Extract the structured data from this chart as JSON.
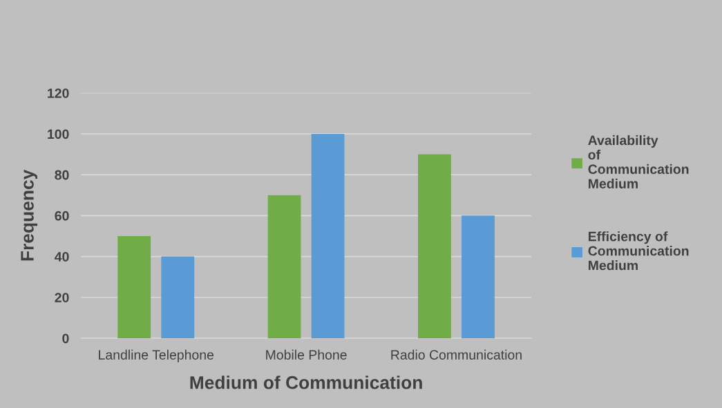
{
  "chart_data": {
    "type": "bar",
    "xlabel": "Medium of Communication",
    "ylabel": "Frequency",
    "categories": [
      "Landline Telephone",
      "Mobile Phone",
      "Radio Communication"
    ],
    "series": [
      {
        "name": "Availability of Communication Medium",
        "color": "#70ad47",
        "values": [
          50,
          70,
          90
        ]
      },
      {
        "name": "Efficiency of Communication Medium",
        "color": "#5b9bd5",
        "values": [
          40,
          100,
          60
        ]
      }
    ],
    "ylim": [
      0,
      120
    ],
    "yticks": [
      0,
      20,
      40,
      60,
      80,
      100,
      120
    ],
    "grid": "y",
    "legend": "right"
  }
}
